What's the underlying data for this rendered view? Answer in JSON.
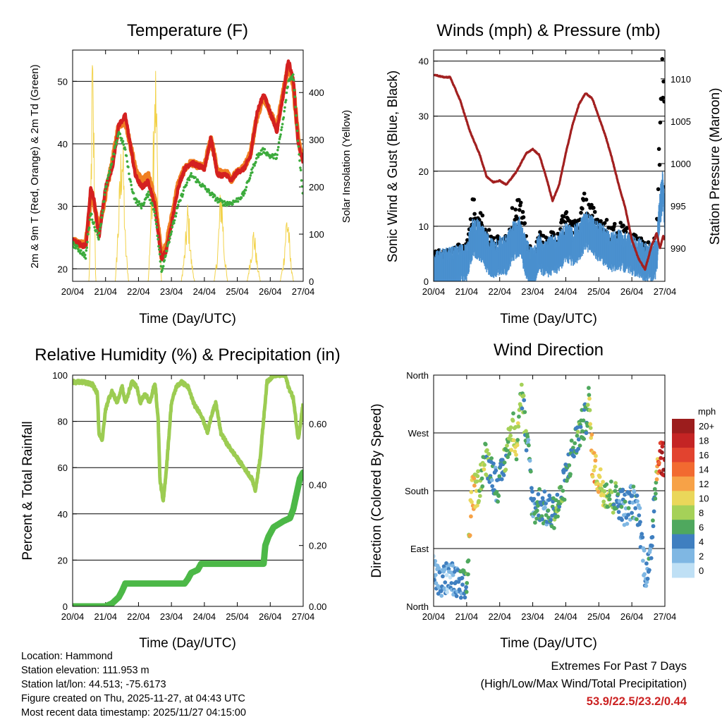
{
  "chart_data": [
    {
      "type": "line",
      "title": "Temperature (F)",
      "xlabel": "Time (Day/UTC)",
      "ylabel": "2m & 9m T (Red, Orange) & 2m Td (Green)",
      "ylabel_right": "Solar Insolation (Yellow)",
      "x_ticks": [
        "20/04",
        "21/04",
        "22/04",
        "23/04",
        "24/04",
        "25/04",
        "26/04",
        "27/04"
      ],
      "xlim": [
        0,
        7
      ],
      "ylim": [
        18,
        55
      ],
      "y_ticks": [
        20,
        30,
        40,
        50
      ],
      "ylim_right": [
        0,
        490
      ],
      "y_ticks_right": [
        0,
        100,
        200,
        300,
        400
      ],
      "series": [
        {
          "name": "2m T",
          "color": "#d42020",
          "x": [
            0,
            0.2,
            0.4,
            0.55,
            0.65,
            0.8,
            1.0,
            1.2,
            1.4,
            1.6,
            1.75,
            1.9,
            2.1,
            2.3,
            2.5,
            2.7,
            2.85,
            3.0,
            3.2,
            3.4,
            3.6,
            3.8,
            4.0,
            4.2,
            4.4,
            4.6,
            4.7,
            4.8,
            5.0,
            5.2,
            5.4,
            5.6,
            5.8,
            6.0,
            6.2,
            6.4,
            6.55,
            6.7,
            6.85,
            7.0
          ],
          "values": [
            24.5,
            24,
            23.5,
            33,
            31,
            25,
            33,
            36,
            43,
            44.5,
            40,
            35,
            33,
            34,
            30,
            21.5,
            23,
            27,
            33,
            36,
            37,
            36.5,
            36,
            41,
            35,
            35,
            35,
            34,
            35.5,
            36,
            38,
            45,
            48,
            45,
            42,
            48,
            53.5,
            50,
            40,
            37
          ]
        },
        {
          "name": "9m T",
          "color": "#f07f22",
          "x": [
            0,
            0.2,
            0.4,
            0.55,
            0.65,
            0.8,
            1.0,
            1.2,
            1.4,
            1.6,
            1.75,
            1.9,
            2.1,
            2.3,
            2.5,
            2.7,
            2.85,
            3.0,
            3.2,
            3.4,
            3.6,
            3.8,
            4.0,
            4.2,
            4.4,
            4.6,
            4.7,
            4.8,
            5.0,
            5.2,
            5.4,
            5.6,
            5.8,
            6.0,
            6.2,
            6.4,
            6.55,
            6.7,
            6.85,
            7.0
          ],
          "values": [
            24.5,
            24,
            24,
            31.5,
            30.5,
            26,
            32,
            37,
            43,
            43.5,
            40,
            36,
            34,
            35,
            31,
            22,
            24,
            28,
            33.5,
            36,
            37,
            36.5,
            36.3,
            41,
            35.5,
            35.3,
            35.2,
            34.2,
            35.7,
            36.2,
            38.5,
            44.5,
            47.5,
            45,
            42.5,
            48.5,
            52.5,
            49.5,
            40.5,
            37.5
          ]
        },
        {
          "name": "2m Td",
          "color": "#3cab3c",
          "x": [
            0,
            0.2,
            0.4,
            0.55,
            0.65,
            0.8,
            1.0,
            1.2,
            1.4,
            1.6,
            1.75,
            1.9,
            2.1,
            2.3,
            2.5,
            2.7,
            2.85,
            3.0,
            3.2,
            3.4,
            3.6,
            3.8,
            4.0,
            4.2,
            4.4,
            4.6,
            4.7,
            4.8,
            5.0,
            5.2,
            5.4,
            5.6,
            5.8,
            6.0,
            6.2,
            6.4,
            6.55,
            6.7,
            6.85,
            7.0
          ],
          "values": [
            24,
            23,
            22,
            29,
            27,
            25,
            33,
            37,
            42,
            39,
            34,
            31,
            30,
            32,
            29,
            19.5,
            23,
            26,
            30,
            33,
            35,
            34,
            33,
            32,
            31,
            30.5,
            30.5,
            30.5,
            31,
            32,
            35,
            38,
            39,
            38,
            38,
            44,
            50,
            51,
            40,
            31.5
          ]
        },
        {
          "name": "Solar Insolation",
          "color": "#f2d24a",
          "axis": "right",
          "x": [
            0,
            0.5,
            0.55,
            0.6,
            0.65,
            0.7,
            1.3,
            1.4,
            1.5,
            1.55,
            1.6,
            1.7,
            2.3,
            2.4,
            2.5,
            2.55,
            2.6,
            2.7,
            3.3,
            3.4,
            3.5,
            3.55,
            3.6,
            3.7,
            4.3,
            4.4,
            4.5,
            4.55,
            4.6,
            4.7,
            5.3,
            5.4,
            5.5,
            5.55,
            5.6,
            5.7,
            6.3,
            6.4,
            6.5,
            6.55,
            6.6,
            6.7,
            7.0
          ],
          "values": [
            0,
            0,
            180,
            470,
            300,
            0,
            0,
            150,
            320,
            230,
            90,
            0,
            0,
            200,
            480,
            360,
            160,
            0,
            0,
            60,
            160,
            110,
            50,
            0,
            0,
            60,
            200,
            160,
            70,
            0,
            0,
            50,
            110,
            80,
            40,
            0,
            0,
            40,
            140,
            130,
            60,
            0,
            0
          ]
        }
      ]
    },
    {
      "type": "line",
      "title": "Winds (mph) & Pressure (mb)",
      "xlabel": "Time (Day/UTC)",
      "ylabel": "Sonic Wind & Gust (Blue, Black)",
      "ylabel_right": "Station Pressure (Maroon)",
      "x_ticks": [
        "20/04",
        "21/04",
        "22/04",
        "23/04",
        "24/04",
        "25/04",
        "26/04",
        "27/04"
      ],
      "xlim": [
        0,
        7
      ],
      "ylim": [
        0,
        42
      ],
      "y_ticks": [
        0,
        10,
        20,
        30,
        40
      ],
      "ylim_right": [
        986.1,
        1013.4
      ],
      "y_ticks_right": [
        990,
        995,
        1000,
        1005,
        1010
      ],
      "series": [
        {
          "name": "Sonic Wind",
          "color": "#4a90cf",
          "x": [
            0,
            0.3,
            0.6,
            0.9,
            1.0,
            1.2,
            1.4,
            1.6,
            1.8,
            2.0,
            2.2,
            2.4,
            2.6,
            2.8,
            3.0,
            3.2,
            3.4,
            3.6,
            3.8,
            4.0,
            4.2,
            4.4,
            4.6,
            4.8,
            5.0,
            5.2,
            5.4,
            5.6,
            5.8,
            6.0,
            6.2,
            6.4,
            6.6,
            6.75,
            6.85,
            6.95,
            7.0
          ],
          "values": [
            3,
            3,
            3.5,
            4,
            4.5,
            9,
            8,
            6,
            5,
            5.5,
            5.5,
            8,
            9,
            5,
            3,
            6,
            5,
            5.5,
            6,
            8,
            7,
            8,
            10,
            9,
            8,
            7,
            6,
            6.5,
            6,
            5.5,
            5,
            4.5,
            4,
            5,
            14,
            18,
            12
          ]
        },
        {
          "name": "Gust",
          "color": "#000000",
          "x": [
            0,
            0.3,
            0.6,
            0.9,
            1.0,
            1.2,
            1.4,
            1.6,
            1.8,
            2.0,
            2.2,
            2.4,
            2.6,
            2.8,
            3.0,
            3.2,
            3.4,
            3.6,
            3.8,
            4.0,
            4.2,
            4.4,
            4.6,
            4.8,
            5.0,
            5.2,
            5.4,
            5.6,
            5.8,
            6.0,
            6.2,
            6.4,
            6.6,
            6.75,
            6.85,
            6.95,
            7.0
          ],
          "values": [
            5,
            5,
            5.5,
            7,
            6,
            14,
            12,
            9,
            7,
            7.5,
            8,
            12,
            14,
            8,
            4,
            8,
            7,
            8,
            9,
            12,
            10,
            11,
            15,
            12,
            11,
            10,
            9,
            9.5,
            9,
            8,
            7,
            6.5,
            6,
            8,
            30,
            38,
            22
          ]
        },
        {
          "name": "Station Pressure",
          "color": "#a22020",
          "axis": "right",
          "x": [
            0,
            0.3,
            0.5,
            0.8,
            1.1,
            1.4,
            1.6,
            1.8,
            2.0,
            2.2,
            2.5,
            2.8,
            3.0,
            3.2,
            3.4,
            3.6,
            3.8,
            4.0,
            4.2,
            4.4,
            4.6,
            4.8,
            5.0,
            5.2,
            5.4,
            5.6,
            5.8,
            6.0,
            6.2,
            6.4,
            6.6,
            6.75,
            6.85,
            6.95,
            7.0
          ],
          "values": [
            1010.5,
            1010.2,
            1010.2,
            1007.5,
            1003.8,
            1001,
            998.5,
            997.8,
            998,
            997.5,
            999,
            1001.2,
            1001.7,
            1001,
            998.5,
            995.6,
            997.5,
            1001.2,
            1004.5,
            1007,
            1008.3,
            1007.7,
            1005.5,
            1003.3,
            1000.6,
            997.5,
            994.8,
            991,
            988.8,
            987.5,
            990.3,
            991.8,
            990,
            991.5,
            991
          ]
        }
      ]
    },
    {
      "type": "line",
      "title": "Relative Humidity (%) & Precipitation (in)",
      "xlabel": "Time (Day/UTC)",
      "ylabel": "Percent & Total Rainfall",
      "x_ticks": [
        "20/04",
        "21/04",
        "22/04",
        "23/04",
        "24/04",
        "25/04",
        "26/04",
        "27/04"
      ],
      "xlim": [
        0,
        7
      ],
      "ylim": [
        0,
        100
      ],
      "y_ticks": [
        0,
        20,
        40,
        60,
        80,
        100
      ],
      "ylim_right": [
        0,
        0.76
      ],
      "y_ticks_right": [
        "0.00",
        "0.20",
        "0.40",
        "0.60"
      ],
      "series": [
        {
          "name": "Relative Humidity",
          "color": "#9ccc52",
          "x": [
            0,
            0.3,
            0.6,
            0.75,
            0.8,
            0.9,
            1.0,
            1.1,
            1.2,
            1.35,
            1.5,
            1.6,
            1.8,
            1.95,
            2.05,
            2.2,
            2.35,
            2.5,
            2.6,
            2.65,
            2.75,
            2.85,
            3.0,
            3.15,
            3.3,
            3.5,
            3.7,
            3.9,
            4.1,
            4.2,
            4.35,
            4.5,
            4.7,
            4.9,
            5.1,
            5.3,
            5.45,
            5.55,
            5.7,
            5.9,
            6.1,
            6.3,
            6.45,
            6.55,
            6.7,
            6.85,
            7.0
          ],
          "values": [
            97,
            97,
            96,
            92,
            75,
            72,
            85,
            90,
            93,
            88,
            95,
            88,
            97,
            95,
            88,
            92,
            88,
            97,
            80,
            55,
            45,
            60,
            88,
            95,
            97,
            95,
            87,
            83,
            75,
            82,
            88,
            75,
            70,
            66,
            62,
            58,
            55,
            50,
            65,
            97,
            100,
            100,
            100,
            95,
            90,
            72,
            88
          ]
        },
        {
          "name": "Total Precipitation",
          "color": "#4cb847",
          "axis": "right",
          "x": [
            0,
            1.0,
            1.2,
            1.4,
            1.5,
            1.6,
            2.2,
            3.4,
            3.5,
            3.6,
            3.8,
            3.9,
            5.8,
            5.85,
            5.95,
            6.1,
            6.4,
            6.6,
            6.7,
            6.8,
            6.9,
            7.0
          ],
          "values": [
            0,
            0,
            0.01,
            0.03,
            0.05,
            0.075,
            0.075,
            0.075,
            0.09,
            0.11,
            0.12,
            0.14,
            0.14,
            0.2,
            0.23,
            0.26,
            0.28,
            0.29,
            0.32,
            0.37,
            0.42,
            0.44
          ]
        }
      ]
    },
    {
      "type": "scatter",
      "title": "Wind Direction",
      "xlabel": "Time (Day/UTC)",
      "ylabel": "Direction (Colored By Speed)",
      "x_ticks": [
        "20/04",
        "21/04",
        "22/04",
        "23/04",
        "24/04",
        "25/04",
        "26/04",
        "27/04"
      ],
      "xlim": [
        0,
        7
      ],
      "ylim": [
        0,
        360
      ],
      "y_ticks": [
        "North",
        "East",
        "South",
        "West",
        "North"
      ],
      "y_tick_values": [
        0,
        90,
        180,
        270,
        360
      ],
      "colorbar_title": "mph",
      "colorbar_labels": [
        "20+",
        "18",
        "16",
        "14",
        "12",
        "10",
        "8",
        "6",
        "4",
        "2",
        "0"
      ],
      "colorbar_colors": [
        "#9c1d1d",
        "#c42424",
        "#e2432f",
        "#f26a30",
        "#f7a247",
        "#ead75a",
        "#a5d158",
        "#4fa85e",
        "#3f7fc0",
        "#7fb7e3",
        "#bfe0f5"
      ],
      "series": [
        {
          "name": "Direction",
          "x": [
            0.0,
            0.2,
            0.4,
            0.6,
            0.8,
            1.0,
            1.15,
            1.3,
            1.4,
            1.55,
            1.7,
            1.9,
            2.0,
            2.2,
            2.4,
            2.5,
            2.6,
            2.7,
            2.8,
            2.9,
            3.0,
            3.2,
            3.4,
            3.6,
            3.8,
            4.0,
            4.2,
            4.4,
            4.5,
            4.6,
            4.7,
            4.8,
            5.0,
            5.2,
            5.4,
            5.6,
            5.7,
            5.8,
            6.0,
            6.2,
            6.4,
            6.55,
            6.7,
            6.85,
            7.0
          ],
          "values": [
            60,
            30,
            45,
            40,
            30,
            30,
            175,
            180,
            195,
            230,
            220,
            190,
            190,
            240,
            280,
            250,
            320,
            330,
            250,
            230,
            150,
            160,
            150,
            145,
            160,
            200,
            240,
            270,
            280,
            290,
            320,
            230,
            195,
            180,
            170,
            165,
            160,
            150,
            165,
            150,
            55,
            60,
            190,
            240,
            220
          ],
          "speeds": [
            2,
            3,
            2,
            3,
            4,
            5,
            12,
            9,
            7,
            8,
            5,
            4,
            5,
            6,
            9,
            8,
            7,
            6,
            5,
            4,
            4,
            5,
            4,
            6,
            6,
            5,
            4,
            6,
            5,
            5,
            7,
            12,
            10,
            8,
            7,
            5,
            4,
            4,
            4,
            3,
            3,
            4,
            5,
            18,
            19
          ]
        }
      ]
    }
  ],
  "footer": {
    "location": "Location: Hammond",
    "elevation": "Station elevation: 111.953 m",
    "latlon": "Station lat/lon: 44.513; -75.6173",
    "created": "Figure created on Thu, 2025-11-27, at 04:43 UTC",
    "recent": "Most recent data timestamp: 2025/11/27 04:15:00"
  },
  "extremes": {
    "title": "Extremes For Past 7 Days",
    "subtitle": "(High/Low/Max Wind/Total Precipitation)",
    "values": "53.9/22.5/23.2/0.44",
    "value_color": "#cc2222"
  }
}
